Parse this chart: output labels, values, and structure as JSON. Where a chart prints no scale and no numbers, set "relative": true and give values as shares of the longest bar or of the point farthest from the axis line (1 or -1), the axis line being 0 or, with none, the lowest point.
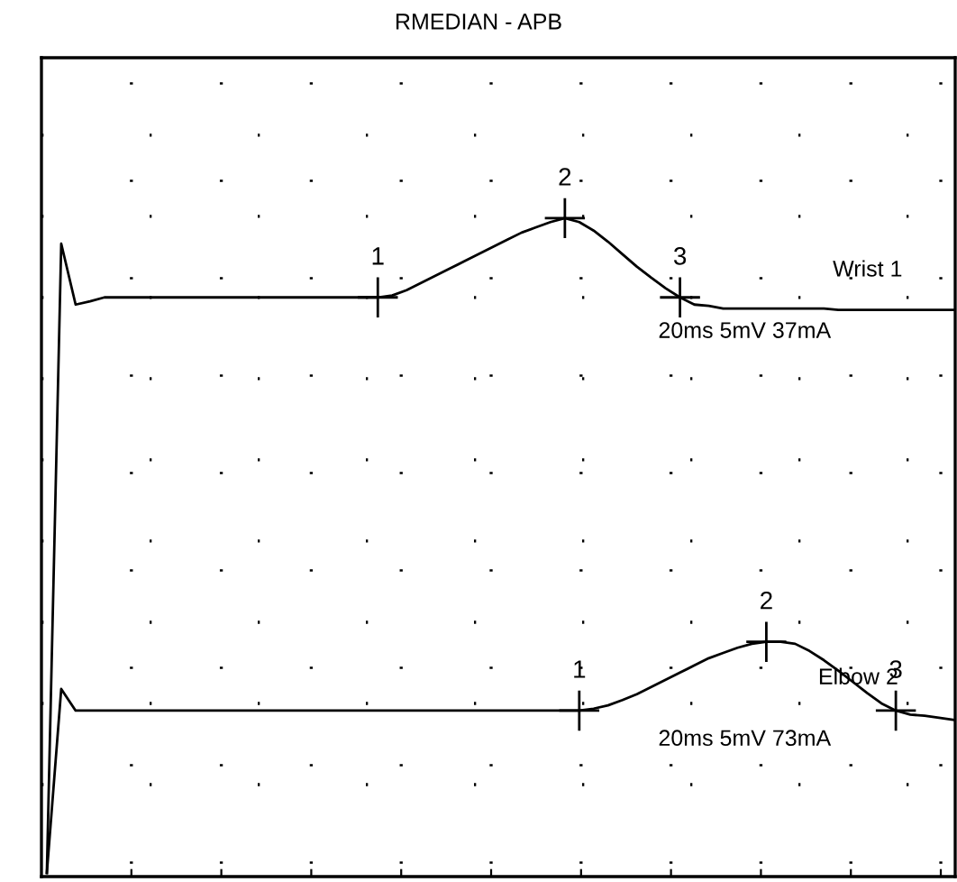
{
  "chart_data": {
    "type": "line",
    "title": "RMEDIAN - APB",
    "relative": true,
    "grid": true,
    "marker": "none",
    "categories": [
      null,
      null,
      null,
      null,
      null,
      null,
      null,
      null,
      null,
      null,
      null,
      null,
      null,
      null,
      null,
      null,
      null,
      null,
      null,
      null,
      null,
      null,
      null,
      null,
      null,
      null,
      null,
      null,
      null,
      null,
      null,
      null,
      null,
      null,
      null,
      null,
      null,
      null,
      null,
      null,
      null,
      null,
      null,
      null,
      null,
      null,
      null,
      null,
      null,
      null,
      null,
      null,
      null,
      null,
      null,
      null,
      null,
      null,
      null,
      null,
      null,
      null,
      null,
      null
    ],
    "series": [
      {
        "color": "#000000",
        "values": [
          0,
          0.961,
          0.868,
          0.873,
          0.879,
          0.879,
          0.879,
          0.879,
          0.879,
          0.879,
          0.879,
          0.879,
          0.879,
          0.879,
          0.879,
          0.879,
          0.879,
          0.879,
          0.879,
          0.879,
          0.879,
          0.879,
          0.879,
          0.879,
          0.882,
          0.89,
          0.901,
          0.912,
          0.923,
          0.934,
          0.945,
          0.956,
          0.967,
          0.978,
          0.986,
          0.994,
          1,
          0.994,
          0.981,
          0.964,
          0.945,
          0.926,
          0.909,
          0.893,
          0.879,
          0.868,
          0.866,
          0.862,
          0.862,
          0.862,
          0.862,
          0.862,
          0.862,
          0.862,
          0.862,
          0.86,
          0.86,
          0.86,
          0.86,
          0.86,
          0.86,
          0.86,
          0.86,
          0.86
        ]
      },
      {
        "color": "#000000",
        "values": [
          0,
          0.281,
          0.248,
          0.248,
          0.248,
          0.248,
          0.248,
          0.248,
          0.248,
          0.248,
          0.248,
          0.248,
          0.248,
          0.248,
          0.248,
          0.248,
          0.248,
          0.248,
          0.248,
          0.248,
          0.248,
          0.248,
          0.248,
          0.248,
          0.248,
          0.248,
          0.248,
          0.248,
          0.248,
          0.248,
          0.248,
          0.248,
          0.248,
          0.248,
          0.248,
          0.248,
          0.248,
          0.248,
          0.251,
          0.256,
          0.264,
          0.273,
          0.284,
          0.295,
          0.306,
          0.317,
          0.328,
          0.336,
          0.344,
          0.35,
          0.353,
          0.353,
          0.35,
          0.339,
          0.325,
          0.309,
          0.292,
          0.275,
          0.259,
          0.248,
          0.242,
          0.24,
          0.237,
          0.234
        ]
      }
    ],
    "annotations": [
      "Wrist 1",
      "20ms 5mV 37mA",
      "Elbow 2",
      "20ms 5mV 73mA",
      {
        "text": "1",
        "y": 0.879
      },
      {
        "text": "2",
        "y": 1
      },
      {
        "text": "3",
        "y": 0.879
      },
      {
        "text": "1",
        "y": 0.248
      },
      {
        "text": "2",
        "y": 0.353
      },
      {
        "text": "3",
        "y": 0.248
      }
    ]
  }
}
